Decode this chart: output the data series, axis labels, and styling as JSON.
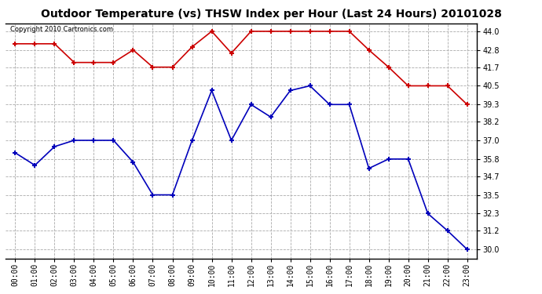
{
  "title": "Outdoor Temperature (vs) THSW Index per Hour (Last 24 Hours) 20101028",
  "copyright": "Copyright 2010 Cartronics.com",
  "hours": [
    "00:00",
    "01:00",
    "02:00",
    "03:00",
    "04:00",
    "05:00",
    "06:00",
    "07:00",
    "08:00",
    "09:00",
    "10:00",
    "11:00",
    "12:00",
    "13:00",
    "14:00",
    "15:00",
    "16:00",
    "17:00",
    "18:00",
    "19:00",
    "20:00",
    "21:00",
    "22:00",
    "23:00"
  ],
  "red_data": [
    43.2,
    43.2,
    43.2,
    42.0,
    42.0,
    42.0,
    42.8,
    41.7,
    41.7,
    43.0,
    44.0,
    42.6,
    44.0,
    44.0,
    44.0,
    44.0,
    44.0,
    44.0,
    42.8,
    41.7,
    40.5,
    40.5,
    40.5,
    39.3
  ],
  "blue_data": [
    36.2,
    35.4,
    36.6,
    37.0,
    37.0,
    37.0,
    35.6,
    33.5,
    33.5,
    37.0,
    40.2,
    37.0,
    39.3,
    38.5,
    40.2,
    40.5,
    39.3,
    39.3,
    35.2,
    35.8,
    35.8,
    32.3,
    31.2,
    30.0
  ],
  "yticks": [
    30.0,
    31.2,
    32.3,
    33.5,
    34.7,
    35.8,
    37.0,
    38.2,
    39.3,
    40.5,
    41.7,
    42.8,
    44.0
  ],
  "ymin": 29.4,
  "ymax": 44.5,
  "bg_color": "#ffffff",
  "plot_bg": "#ffffff",
  "grid_color": "#aaaaaa",
  "red_color": "#cc0000",
  "blue_color": "#0000bb",
  "title_fontsize": 10,
  "tick_fontsize": 7,
  "copyright_fontsize": 6
}
